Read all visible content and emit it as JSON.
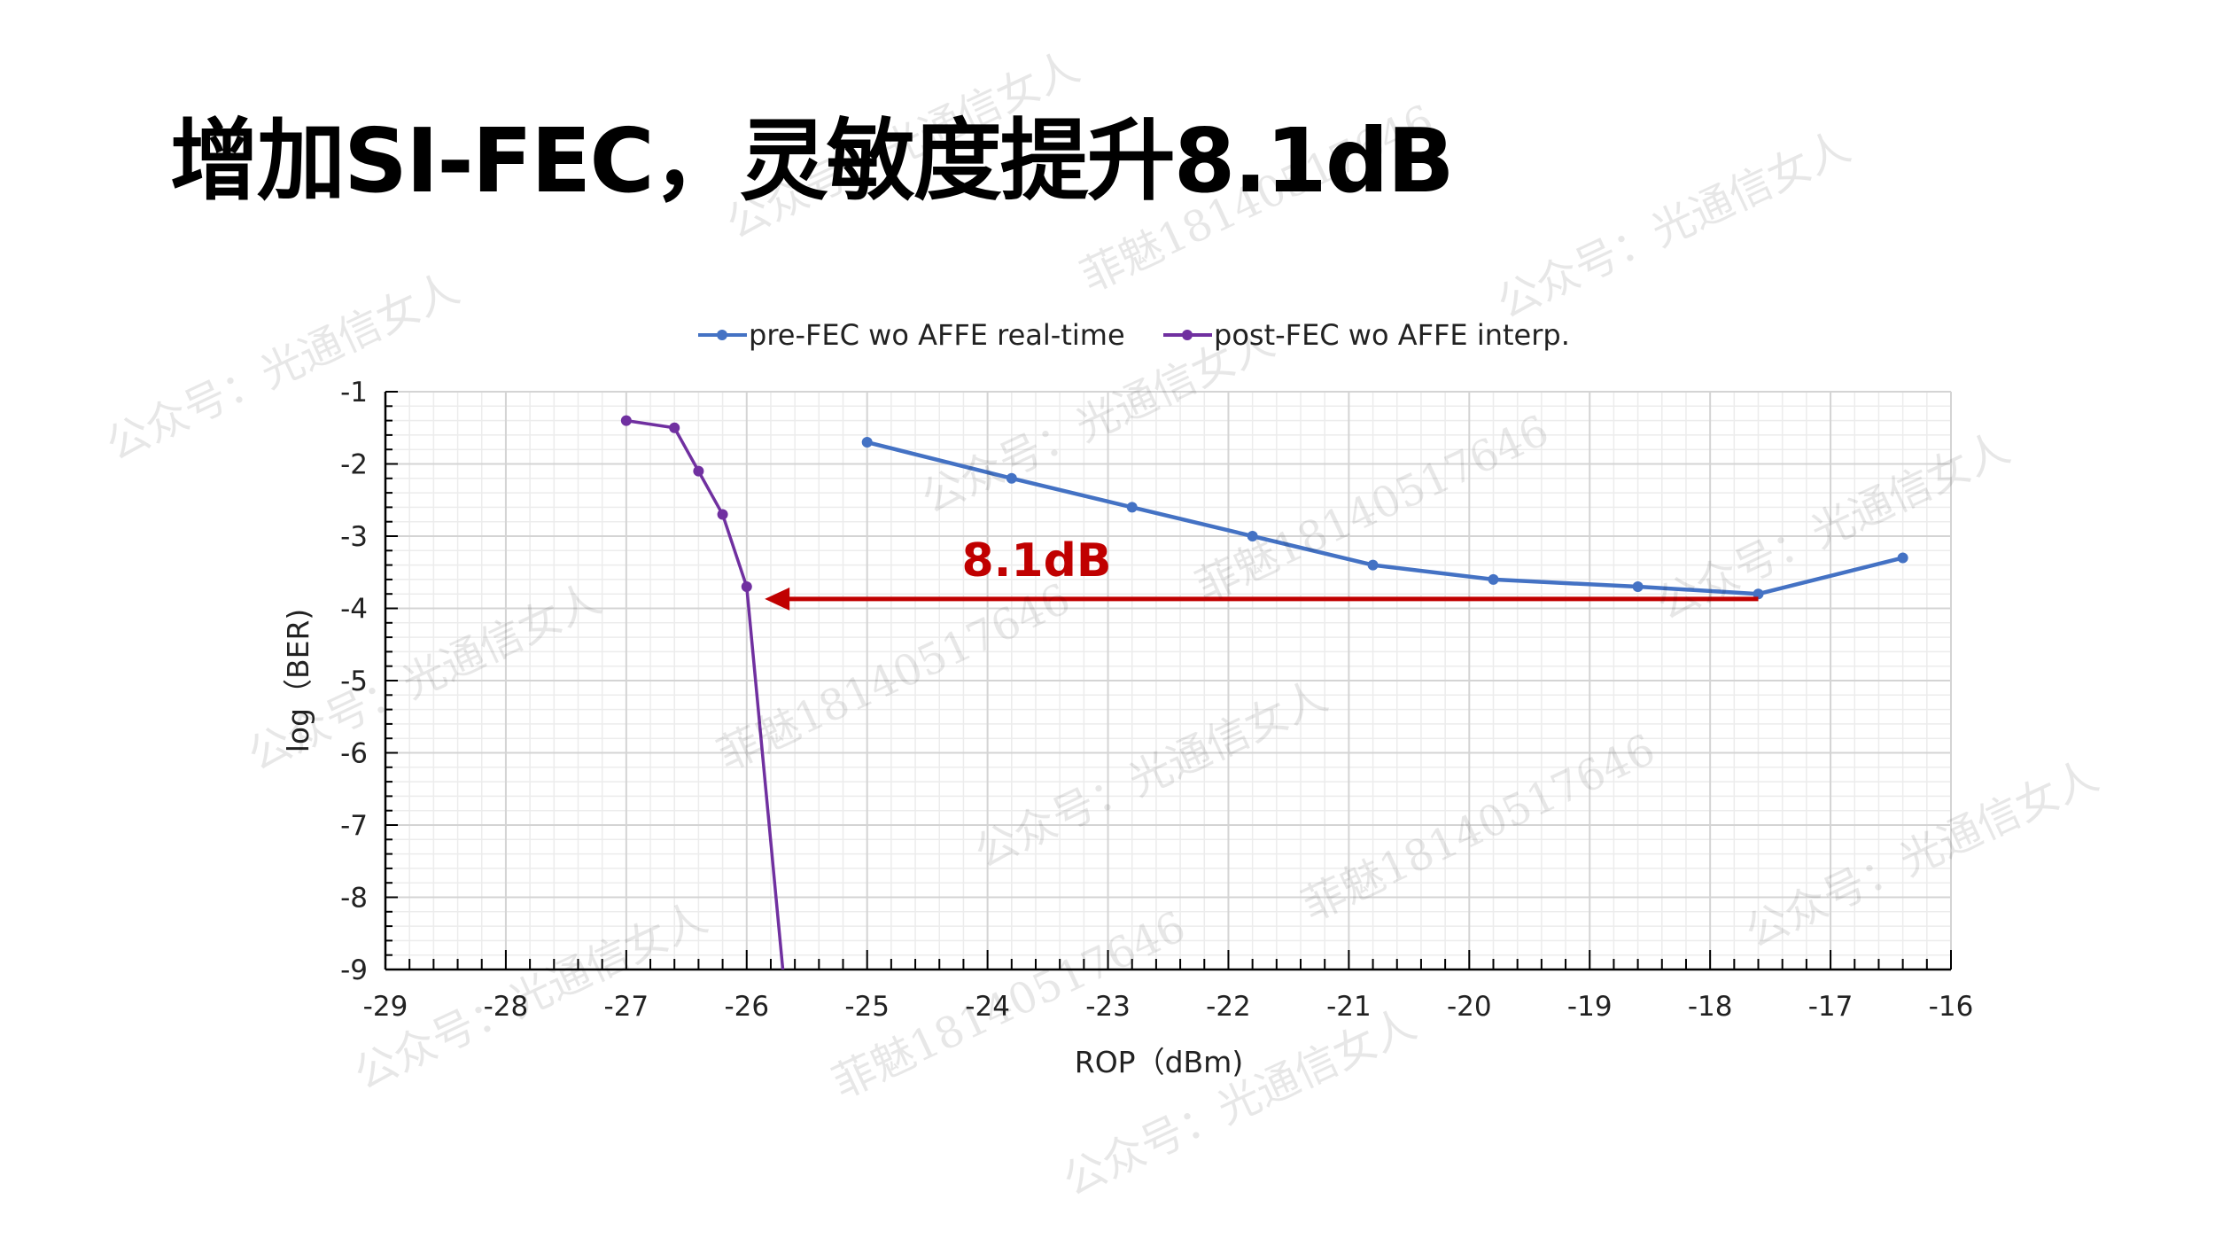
{
  "title": "增加SI-FEC，灵敏度提升8.1dB",
  "watermarks": [
    "公众号：光通信女人",
    "菲魅18140517646"
  ],
  "chart_data": {
    "type": "line",
    "xlabel": "ROP（dBm)",
    "ylabel": "log（BER)",
    "xlim": [
      -29,
      -16
    ],
    "ylim": [
      -9,
      -1
    ],
    "xticks": [
      -29,
      -28,
      -27,
      -26,
      -25,
      -24,
      -23,
      -22,
      -21,
      -20,
      -19,
      -18,
      -17,
      -16
    ],
    "yticks": [
      -1,
      -2,
      -3,
      -4,
      -5,
      -6,
      -7,
      -8,
      -9
    ],
    "grid": true,
    "legend_position": "top",
    "series": [
      {
        "name": "pre-FEC wo AFFE real-time",
        "color": "#4472C4",
        "x": [
          -25.0,
          -23.8,
          -22.8,
          -21.8,
          -20.8,
          -19.8,
          -18.6,
          -17.6,
          -16.4
        ],
        "y": [
          -1.7,
          -2.2,
          -2.6,
          -3.0,
          -3.4,
          -3.6,
          -3.7,
          -3.8,
          -3.3
        ]
      },
      {
        "name": "post-FEC wo AFFE interp.",
        "color": "#7030A0",
        "x": [
          -27.0,
          -26.6,
          -26.4,
          -26.2,
          -26.0,
          -25.7
        ],
        "y": [
          -1.4,
          -1.5,
          -2.1,
          -2.7,
          -3.7,
          -9.0
        ]
      }
    ],
    "annotations": [
      {
        "text": "8.1dB",
        "color": "#C00000",
        "arrow_from": [
          -17.6,
          -3.87
        ],
        "arrow_to": [
          -25.85,
          -3.87
        ]
      }
    ]
  }
}
